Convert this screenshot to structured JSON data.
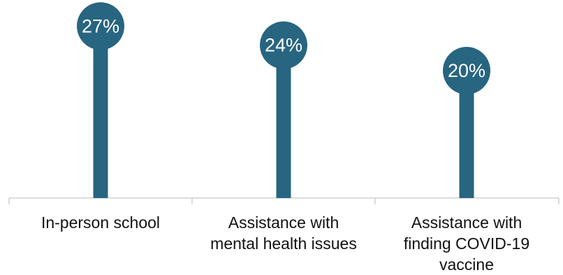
{
  "chart_data": {
    "type": "bar",
    "style": "lollipop",
    "categories": [
      [
        "In-person school"
      ],
      [
        "Assistance with",
        "mental health issues"
      ],
      [
        "Assistance with",
        "finding COVID-19",
        "vaccine"
      ]
    ],
    "values": [
      27,
      24,
      20
    ],
    "data_labels": [
      "27%",
      "24%",
      "20%"
    ],
    "title": "",
    "xlabel": "",
    "ylabel": "",
    "ylim": [
      0,
      30
    ],
    "grid": false,
    "legend": "none",
    "colors": {
      "bar": "#276580",
      "label_text": "#ffffff",
      "axis": "#d0d0d0",
      "category_text": "#111111"
    }
  }
}
